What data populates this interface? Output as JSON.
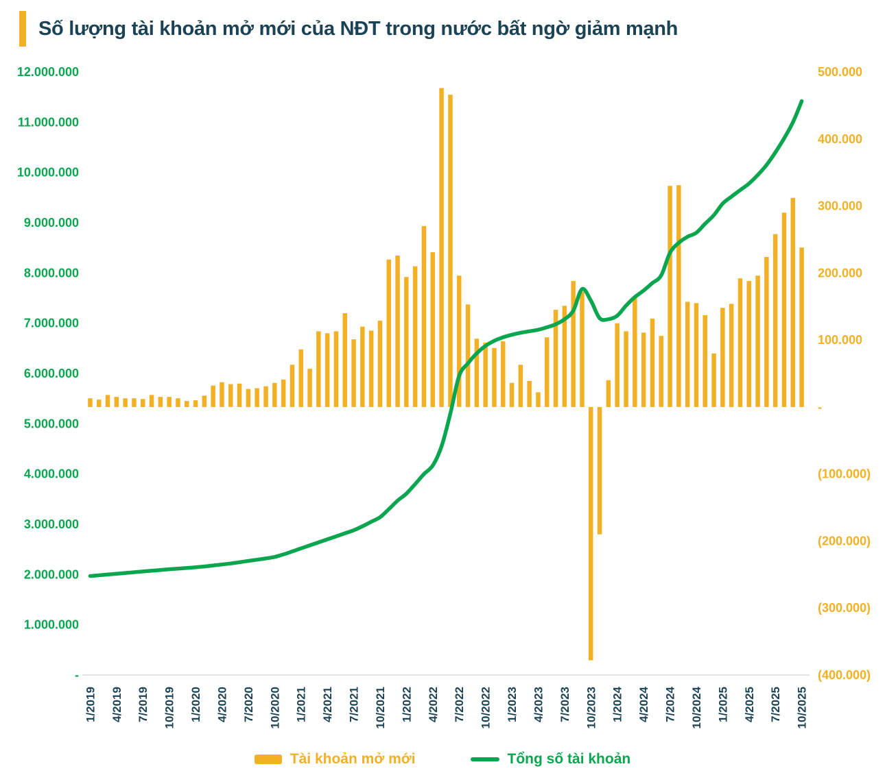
{
  "title": "Số lượng tài khoản mở mới của NĐT trong nước bất ngờ giảm mạnh",
  "colors": {
    "bar": "#F2B124",
    "line": "#0AA64F",
    "title_text": "#1C4355",
    "x_label_text": "#1C4355",
    "left_axis_text": "#0AA64F",
    "right_axis_text": "#F2B124",
    "axis_line": "#D9D9D9",
    "accent_bar": "#F2B124",
    "background": "#FFFFFF"
  },
  "legend": {
    "bar_label": "Tài khoản mở mới",
    "line_label": "Tổng số tài khoản",
    "position": "bottom-center"
  },
  "chart_data": {
    "type": "combo: bar (new accounts, right axis) + line (total accounts, left axis)",
    "title": "Số lượng tài khoản mở mới của NĐT trong nước bất ngờ giảm mạnh",
    "grid": false,
    "legend_position": "bottom",
    "x": [
      "1/2019",
      "2/2019",
      "3/2019",
      "4/2019",
      "5/2019",
      "6/2019",
      "7/2019",
      "8/2019",
      "9/2019",
      "10/2019",
      "11/2019",
      "12/2019",
      "1/2020",
      "2/2020",
      "3/2020",
      "4/2020",
      "5/2020",
      "6/2020",
      "7/2020",
      "8/2020",
      "9/2020",
      "10/2020",
      "11/2020",
      "12/2020",
      "1/2021",
      "2/2021",
      "3/2021",
      "4/2021",
      "5/2021",
      "6/2021",
      "7/2021",
      "8/2021",
      "9/2021",
      "10/2021",
      "11/2021",
      "12/2021",
      "1/2022",
      "2/2022",
      "3/2022",
      "4/2022",
      "5/2022",
      "6/2022",
      "7/2022",
      "8/2022",
      "9/2022",
      "10/2022",
      "11/2022",
      "12/2022",
      "1/2023",
      "2/2023",
      "3/2023",
      "4/2023",
      "5/2023",
      "6/2023",
      "7/2023",
      "8/2023",
      "9/2023",
      "10/2023",
      "11/2023",
      "12/2023",
      "1/2024",
      "2/2024",
      "3/2024",
      "4/2024",
      "5/2024",
      "6/2024",
      "7/2024",
      "8/2024",
      "9/2024",
      "10/2024",
      "11/2024",
      "12/2024",
      "1/2025",
      "2/2025",
      "3/2025",
      "4/2025",
      "5/2025",
      "6/2025",
      "7/2025",
      "8/2025",
      "9/2025",
      "10/2025"
    ],
    "x_tick_labels": [
      "1/2019",
      "4/2019",
      "7/2019",
      "10/2019",
      "1/2020",
      "4/2020",
      "7/2020",
      "10/2020",
      "1/2021",
      "4/2021",
      "7/2021",
      "10/2021",
      "1/2022",
      "4/2022",
      "7/2022",
      "10/2022",
      "1/2023",
      "4/2023",
      "7/2023",
      "10/2023",
      "1/2024",
      "4/2024",
      "7/2024",
      "10/2024",
      "1/2025",
      "4/2025",
      "7/2025",
      "10/2025"
    ],
    "x_tick_every": 3,
    "series": [
      {
        "name": "Tài khoản mở mới",
        "type": "bar",
        "axis": "right",
        "color": "#F2B124",
        "values": [
          13000,
          11000,
          18000,
          15000,
          13000,
          13000,
          12000,
          18000,
          15000,
          15000,
          13000,
          9000,
          10000,
          17000,
          32000,
          37000,
          34000,
          35000,
          27000,
          28000,
          31000,
          36000,
          41000,
          63000,
          86000,
          57000,
          113000,
          110000,
          113000,
          140000,
          101000,
          120000,
          114000,
          129000,
          220000,
          226000,
          194000,
          210000,
          270000,
          231000,
          476000,
          466000,
          196000,
          153000,
          102000,
          96000,
          88000,
          98000,
          36000,
          63000,
          39000,
          22000,
          104000,
          145000,
          151000,
          188000,
          172000,
          -378000,
          -190000,
          40000,
          125000,
          113000,
          164000,
          111000,
          132000,
          106000,
          330000,
          331000,
          157000,
          155000,
          137000,
          80000,
          148000,
          154000,
          192000,
          188000,
          196000,
          224000,
          258000,
          290000,
          312000,
          238000
        ]
      },
      {
        "name": "Tổng số tài khoản",
        "type": "line",
        "axis": "left",
        "color": "#0AA64F",
        "values": [
          1970000,
          1985000,
          2000000,
          2015000,
          2030000,
          2045000,
          2060000,
          2075000,
          2090000,
          2105000,
          2118000,
          2130000,
          2145000,
          2160000,
          2180000,
          2200000,
          2220000,
          2245000,
          2270000,
          2295000,
          2320000,
          2350000,
          2400000,
          2460000,
          2520000,
          2580000,
          2640000,
          2700000,
          2760000,
          2820000,
          2880000,
          2960000,
          3050000,
          3140000,
          3300000,
          3470000,
          3610000,
          3800000,
          4000000,
          4170000,
          4550000,
          5200000,
          5950000,
          6200000,
          6400000,
          6550000,
          6650000,
          6720000,
          6770000,
          6810000,
          6840000,
          6870000,
          6920000,
          6980000,
          7080000,
          7250000,
          7680000,
          7450000,
          7100000,
          7080000,
          7150000,
          7350000,
          7520000,
          7650000,
          7800000,
          7950000,
          8400000,
          8600000,
          8720000,
          8800000,
          8980000,
          9150000,
          9380000,
          9520000,
          9650000,
          9780000,
          9950000,
          10150000,
          10400000,
          10680000,
          11000000,
          11420000
        ]
      }
    ],
    "left_axis": {
      "title": "",
      "min": 0,
      "max": 12000000,
      "step": 1000000,
      "tick_labels": [
        "12.000.000",
        "11.000.000",
        "10.000.000",
        "9.000.000",
        "8.000.000",
        "7.000.000",
        "6.000.000",
        "5.000.000",
        "4.000.000",
        "3.000.000",
        "2.000.000",
        "1.000.000",
        "-"
      ]
    },
    "right_axis": {
      "title": "",
      "min": -400000,
      "max": 500000,
      "step": 100000,
      "tick_labels": [
        "500.000",
        "400.000",
        "300.000",
        "200.000",
        "100.000",
        "-",
        "(100.000)",
        "(200.000)",
        "(300.000)",
        "(400.000)"
      ]
    }
  }
}
